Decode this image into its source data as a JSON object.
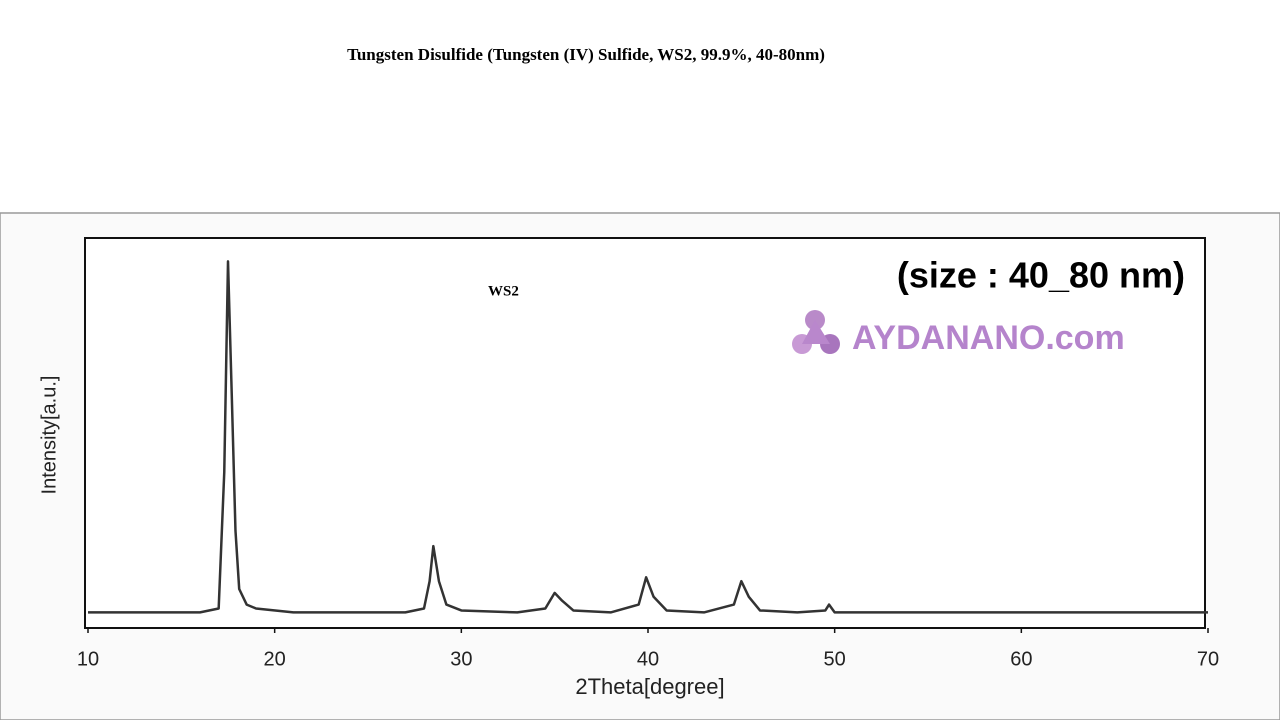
{
  "chart_data": {
    "type": "line",
    "title": "Tungsten Disulfide (Tungsten (IV) Sulfide, WS2, 99.9%, 40-80nm)",
    "annotation": "WS2",
    "size_note": "(size : 40_80 nm)",
    "watermark": "AYDANANO.com",
    "x_label": "2Theta[degree]",
    "y_label": "Intensity[a.u.]",
    "x": [
      10,
      12,
      14,
      16,
      17,
      17.3,
      17.5,
      17.7,
      17.9,
      18.1,
      18.5,
      19,
      21,
      24,
      27,
      28,
      28.3,
      28.5,
      28.8,
      29.2,
      30,
      33,
      34.5,
      35,
      35.4,
      36,
      38,
      39.5,
      39.9,
      40.3,
      41,
      43,
      44.6,
      45,
      45.4,
      46,
      48,
      49.5,
      49.7,
      50,
      55,
      60,
      65,
      70
    ],
    "values": [
      4,
      4,
      4,
      4,
      5,
      40,
      94,
      60,
      25,
      10,
      6,
      5,
      4,
      4,
      4,
      5,
      12,
      21,
      12,
      6,
      4.5,
      4,
      5,
      9,
      7,
      4.5,
      4,
      6,
      13,
      8,
      4.5,
      4,
      6,
      12,
      8,
      4.5,
      4,
      4.5,
      6,
      4,
      4,
      4,
      4,
      4
    ],
    "color": "#333333",
    "xlim": [
      10,
      70
    ],
    "xticks": [
      10,
      20,
      30,
      40,
      50,
      60,
      70
    ],
    "ylim": [
      0,
      100
    ],
    "grid": false
  }
}
